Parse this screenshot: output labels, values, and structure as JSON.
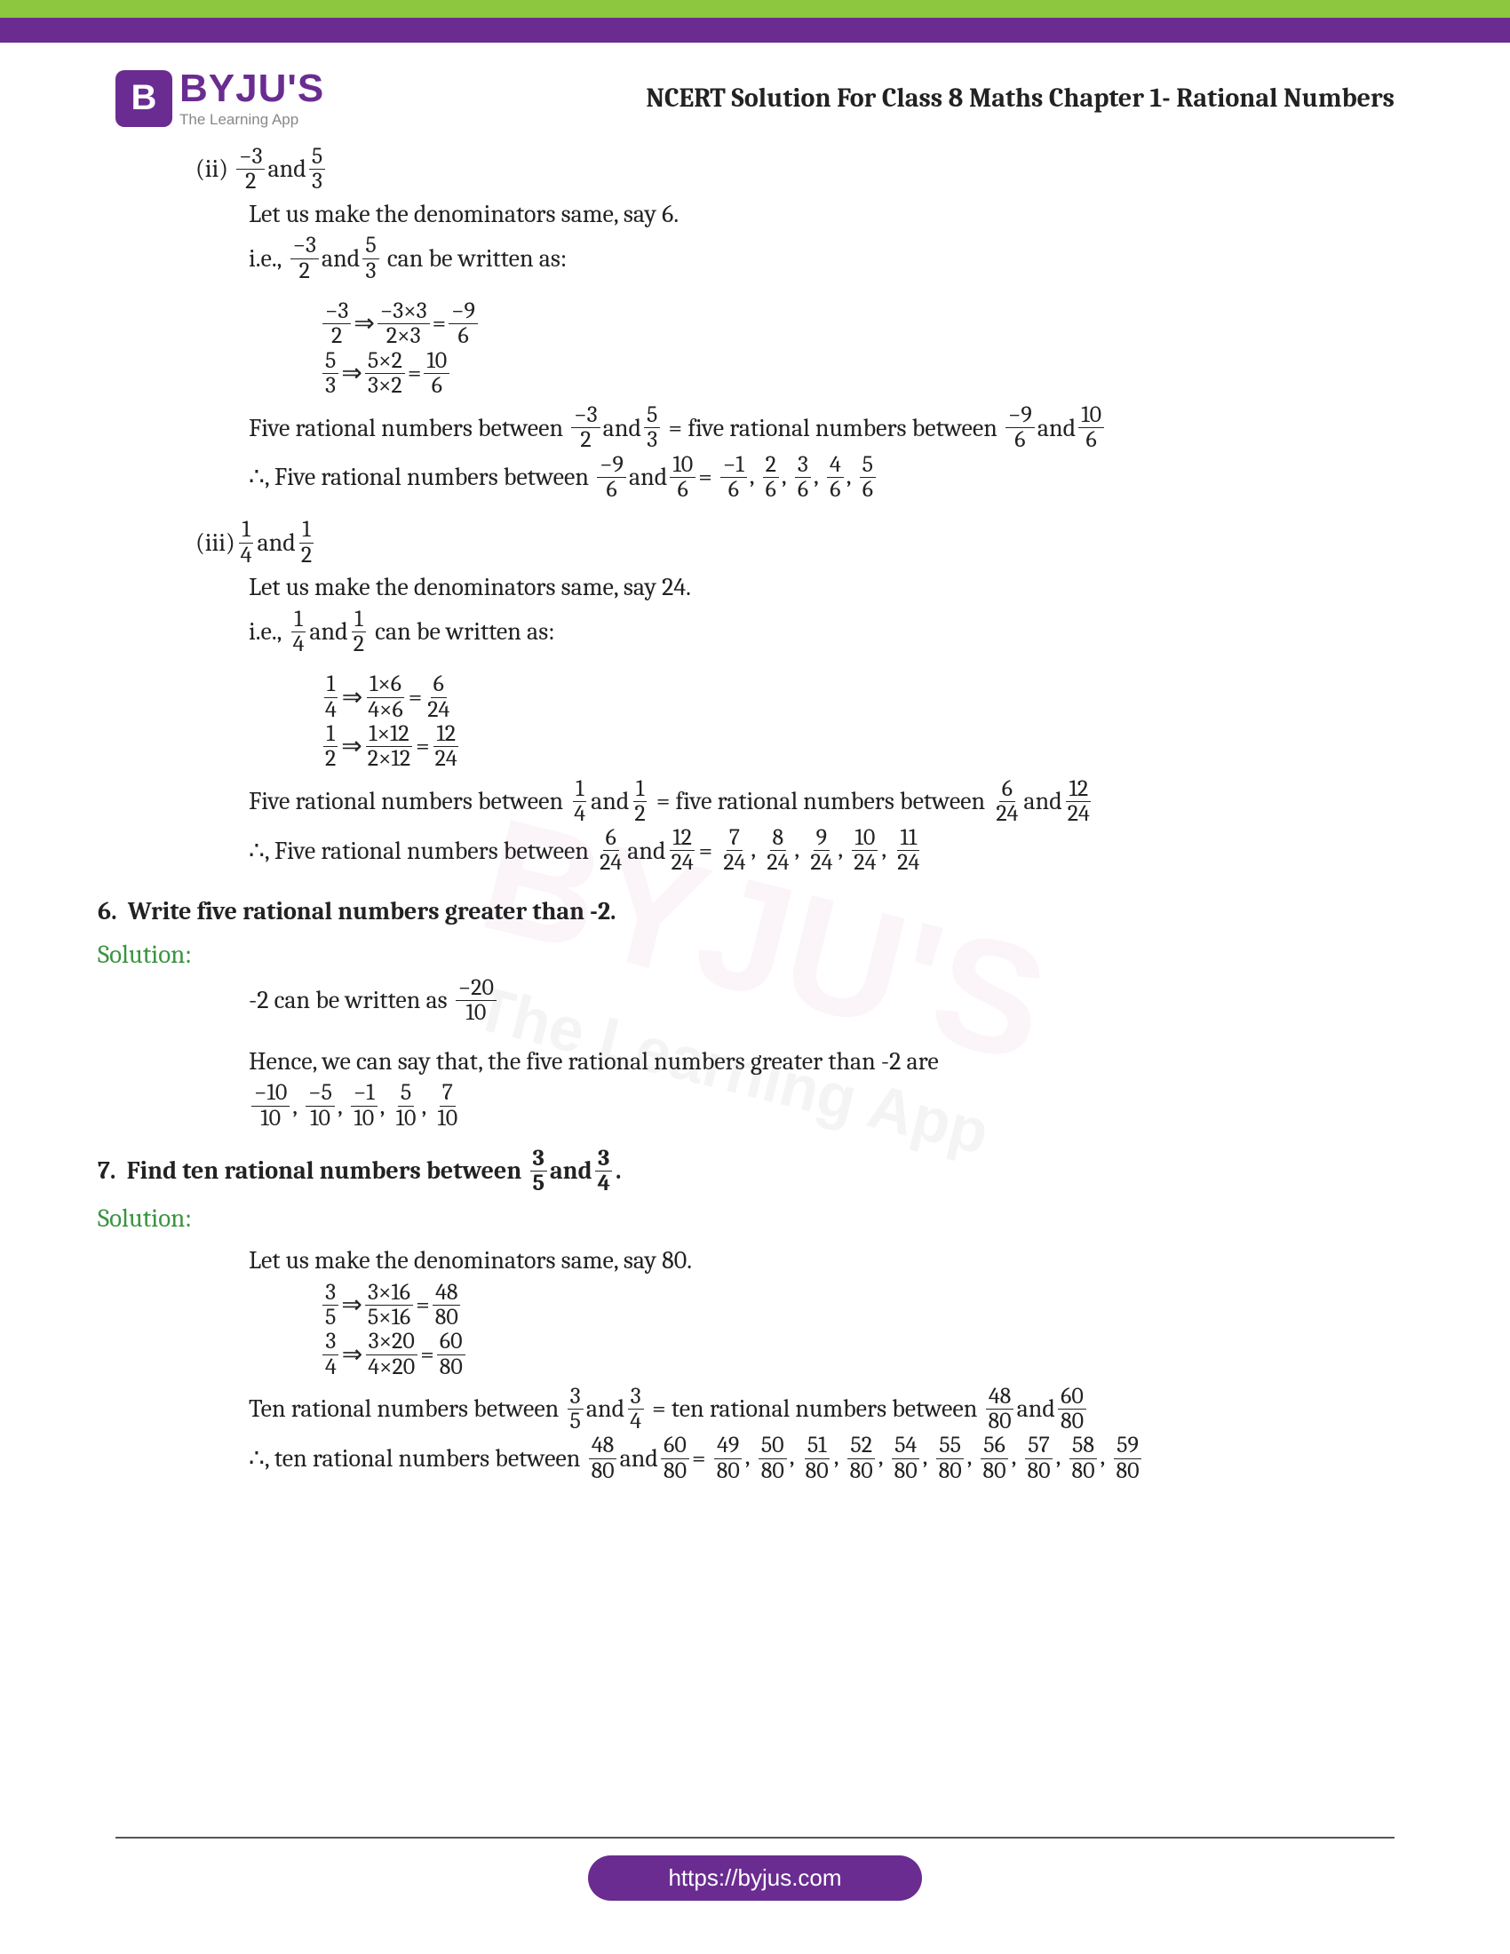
{
  "brand": {
    "badge": "B",
    "name": "BYJU'S",
    "tag": "The Learning App"
  },
  "doc_title": "NCERT Solution For Class 8 Maths Chapter 1- Rational Numbers",
  "watermark": {
    "main": "BYJU'S",
    "sub": "The Learning App"
  },
  "footer_url": "https://byjus.com",
  "s2": {
    "label": "(ii)",
    "f1n": "−3",
    "f1d": "2",
    "and": "and",
    "f2n": "5",
    "f2d": "3",
    "line1": "Let us make the denominators same, say 6.",
    "ie": "i.e.,",
    "written": "can be written as:",
    "c1an": "−3",
    "c1ad": "2",
    "arr": "⇒",
    "c1bn": "−3×3",
    "c1bd": "2×3",
    "eq": "=",
    "c1cn": "−9",
    "c1cd": "6",
    "c2an": "5",
    "c2ad": "3",
    "c2bn": "5×2",
    "c2bd": "3×2",
    "c2cn": "10",
    "c2cd": "6",
    "five_a": "Five rational numbers between",
    "five_b": "= five rational numbers between",
    "r1n": "−9",
    "r1d": "6",
    "r2n": "10",
    "r2d": "6",
    "there": "∴, Five rational numbers between",
    "ans": [
      {
        "n": "−1",
        "d": "6"
      },
      {
        "n": "2",
        "d": "6"
      },
      {
        "n": "3",
        "d": "6"
      },
      {
        "n": "4",
        "d": "6"
      },
      {
        "n": "5",
        "d": "6"
      }
    ]
  },
  "s3": {
    "label": "(iii)",
    "f1n": "1",
    "f1d": "4",
    "and": "and",
    "f2n": "1",
    "f2d": "2",
    "line1": "Let us make the denominators same, say 24.",
    "ie": "i.e.,",
    "written": "can be written as:",
    "c1an": "1",
    "c1ad": "4",
    "arr": "⇒",
    "c1bn": "1×6",
    "c1bd": "4×6",
    "eq": "=",
    "c1cn": "6",
    "c1cd": "24",
    "c2an": "1",
    "c2ad": "2",
    "c2bn": "1×12",
    "c2bd": "2×12",
    "c2cn": "12",
    "c2cd": "24",
    "five_a": "Five rational numbers between",
    "five_b": "= five rational numbers between",
    "r1n": "6",
    "r1d": "24",
    "r2n": "12",
    "r2d": "24",
    "there": "∴, Five rational numbers between",
    "ans": [
      {
        "n": "7",
        "d": "24"
      },
      {
        "n": "8",
        "d": "24"
      },
      {
        "n": "9",
        "d": "24"
      },
      {
        "n": "10",
        "d": "24"
      },
      {
        "n": "11",
        "d": "24"
      }
    ]
  },
  "q6": {
    "num": "6.",
    "title": "Write five rational numbers greater than -2.",
    "sol": "Solution:",
    "l1a": "-2 can be written as",
    "wn": "−20",
    "wd": "10",
    "l2": "Hence, we can say that, the five rational numbers greater than -2 are",
    "ans": [
      {
        "n": "−10",
        "d": "10"
      },
      {
        "n": "−5",
        "d": "10"
      },
      {
        "n": "−1",
        "d": "10"
      },
      {
        "n": "5",
        "d": "10"
      },
      {
        "n": "7",
        "d": "10"
      }
    ]
  },
  "q7": {
    "num": "7.",
    "title_a": "Find ten rational numbers between",
    "title_b": "and",
    "dot": ".",
    "t1n": "3",
    "t1d": "5",
    "t2n": "3",
    "t2d": "4",
    "sol": "Solution:",
    "l1": "Let us make the denominators same, say 80.",
    "c1an": "3",
    "c1ad": "5",
    "arr": "⇒",
    "c1bn": "3×16",
    "c1bd": "5×16",
    "eq": "=",
    "c1cn": "48",
    "c1cd": "80",
    "c2an": "3",
    "c2ad": "4",
    "c2bn": "3×20",
    "c2bd": "4×20",
    "c2cn": "60",
    "c2cd": "80",
    "ten_a": "Ten rational numbers between",
    "ten_b": "= ten rational numbers between",
    "r1n": "48",
    "r1d": "80",
    "r2n": "60",
    "r2d": "80",
    "there": "∴, ten rational numbers between",
    "ans": [
      {
        "n": "49",
        "d": "80"
      },
      {
        "n": "50",
        "d": "80"
      },
      {
        "n": "51",
        "d": "80"
      },
      {
        "n": "52",
        "d": "80"
      },
      {
        "n": "54",
        "d": "80"
      },
      {
        "n": "55",
        "d": "80"
      },
      {
        "n": "56",
        "d": "80"
      },
      {
        "n": "57",
        "d": "80"
      },
      {
        "n": "58",
        "d": "80"
      },
      {
        "n": "59",
        "d": "80"
      }
    ]
  }
}
